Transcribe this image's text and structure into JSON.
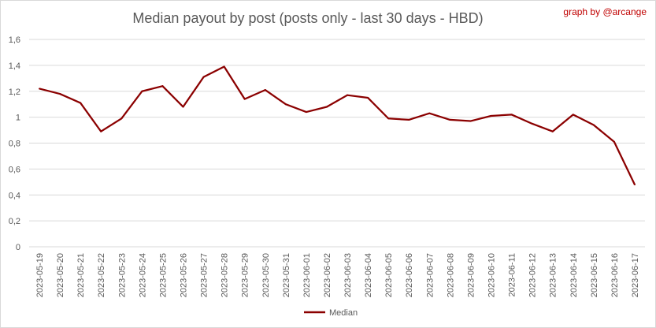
{
  "chart_data": {
    "type": "line",
    "title": "Median payout by post (posts only - last 30 days - HBD)",
    "credit": "graph by @arcange",
    "xlabel": "",
    "ylabel": "",
    "ylim": [
      0,
      1.6
    ],
    "yticks": [
      0,
      0.2,
      0.4,
      0.6,
      0.8,
      1,
      1.2,
      1.4,
      1.6
    ],
    "ytick_labels": [
      "0",
      "0,2",
      "0,4",
      "0,6",
      "0,8",
      "1",
      "1,2",
      "1,4",
      "1,6"
    ],
    "grid": "horizontal",
    "legend_position": "bottom",
    "categories": [
      "2023-05-19",
      "2023-05-20",
      "2023-05-21",
      "2023-05-22",
      "2023-05-23",
      "2023-05-24",
      "2023-05-25",
      "2023-05-26",
      "2023-05-27",
      "2023-05-28",
      "2023-05-29",
      "2023-05-30",
      "2023-05-31",
      "2023-06-01",
      "2023-06-02",
      "2023-06-03",
      "2023-06-04",
      "2023-06-05",
      "2023-06-06",
      "2023-06-07",
      "2023-06-08",
      "2023-06-09",
      "2023-06-10",
      "2023-06-11",
      "2023-06-12",
      "2023-06-13",
      "2023-06-14",
      "2023-06-15",
      "2023-06-16",
      "2023-06-17"
    ],
    "series": [
      {
        "name": "Median",
        "color": "#8b0000",
        "values": [
          1.22,
          1.18,
          1.11,
          0.89,
          0.99,
          1.2,
          1.24,
          1.08,
          1.31,
          1.39,
          1.14,
          1.21,
          1.1,
          1.04,
          1.08,
          1.17,
          1.15,
          0.99,
          0.98,
          1.03,
          0.98,
          0.97,
          1.01,
          1.02,
          0.95,
          0.89,
          1.02,
          0.94,
          0.81,
          0.48
        ]
      }
    ]
  }
}
